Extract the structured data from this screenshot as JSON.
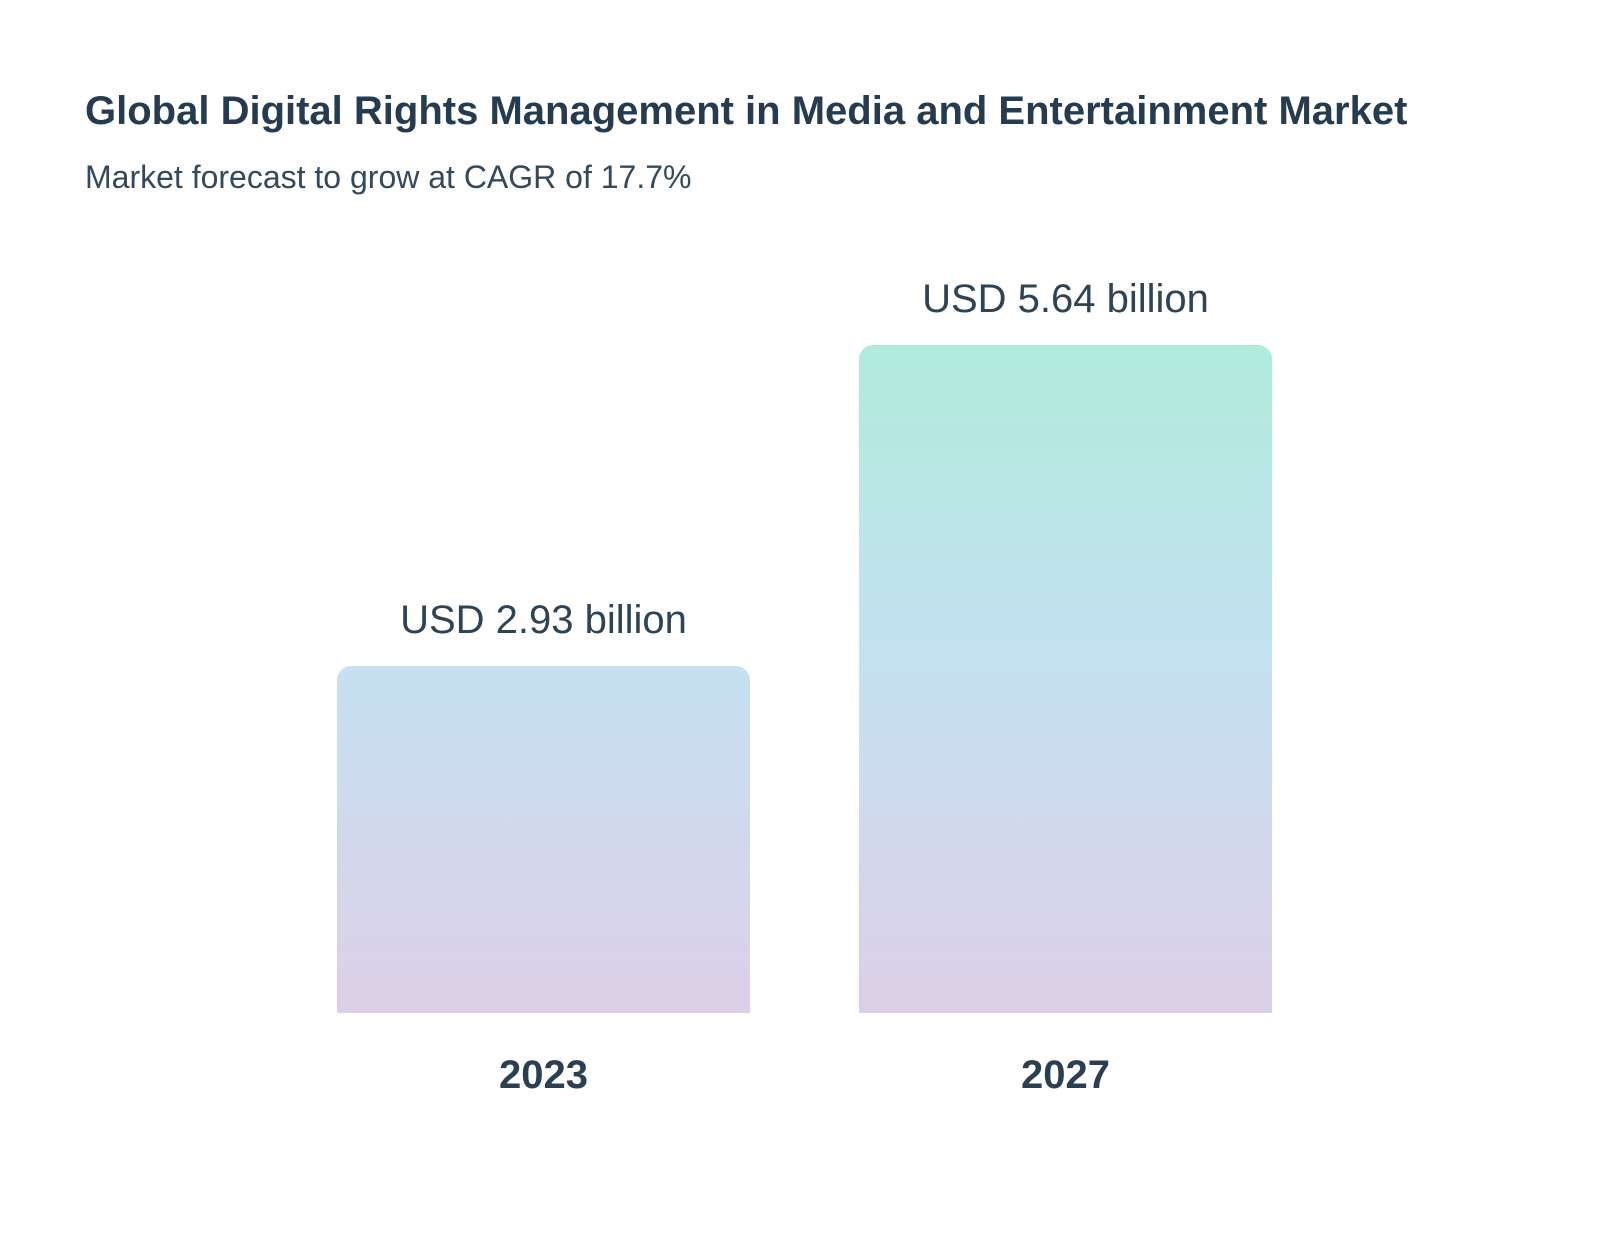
{
  "header": {
    "title": "Global Digital Rights Management in Media and Entertainment Market",
    "subtitle": "Market forecast to grow at CAGR of 17.7%"
  },
  "chart_data": {
    "type": "bar",
    "title": "Global Digital Rights Management in Media and Entertainment Market",
    "subtitle": "Market forecast to grow at CAGR of 17.7%",
    "cagr_percent": 17.7,
    "unit": "USD billion",
    "categories": [
      "2023",
      "2027"
    ],
    "values": [
      2.93,
      5.64
    ],
    "value_labels": [
      "USD 2.93 billion",
      "USD 5.64 billion"
    ],
    "ylim": [
      0,
      5.64
    ],
    "grid": false,
    "legend": false,
    "axes_visible": false,
    "colors": {
      "bar_gradient_top": "#b0ebdc",
      "bar_gradient_middle": "#c5e1f2",
      "bar_gradient_bottom": "#ddcfe6",
      "title_text": "#253c50",
      "label_text": "#2d4356"
    }
  }
}
